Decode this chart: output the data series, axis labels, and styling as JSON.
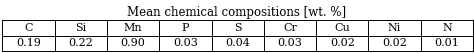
{
  "title": "Mean chemical compositions [wt. %]",
  "columns": [
    "C",
    "Si",
    "Mn",
    "P",
    "S",
    "Cr",
    "Cu",
    "Ni",
    "N"
  ],
  "values": [
    "0.19",
    "0.22",
    "0.90",
    "0.03",
    "0.04",
    "0.03",
    "0.02",
    "0.02",
    "0.01"
  ],
  "title_fontsize": 8.5,
  "cell_fontsize": 8.0,
  "background_color": "#ffffff",
  "text_color": "#000000",
  "line_color": "#000000",
  "fig_width": 4.74,
  "fig_height": 0.53,
  "dpi": 100
}
